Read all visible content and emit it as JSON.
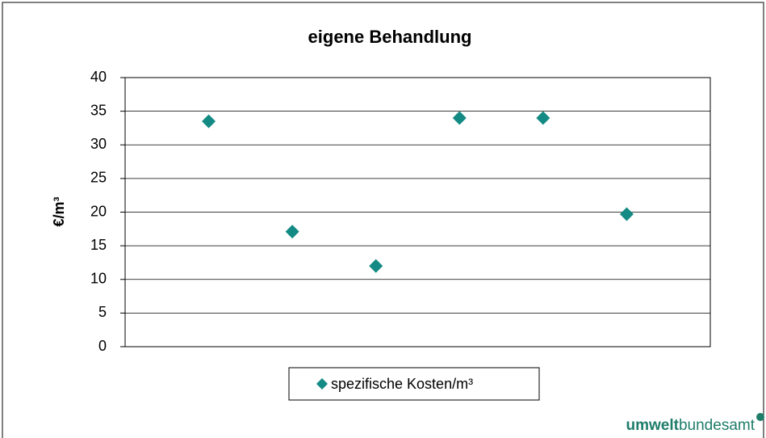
{
  "chart_data": {
    "type": "scatter",
    "title": "eigene Behandlung",
    "y_label": "€/m³",
    "categories": [
      null,
      null,
      null,
      null,
      null,
      null
    ],
    "series": [
      {
        "name": "spezifische Kosten/m³",
        "color": "#138a83",
        "values": [
          33.5,
          17.1,
          12,
          34,
          34,
          19.7
        ]
      }
    ],
    "ylim": [
      0,
      40
    ],
    "yticks": [
      0,
      5,
      10,
      15,
      20,
      25,
      30,
      35,
      40
    ],
    "grid": true,
    "legend": "bottom"
  },
  "logo": {
    "bold": "umwelt",
    "regular": "bundesamt"
  }
}
